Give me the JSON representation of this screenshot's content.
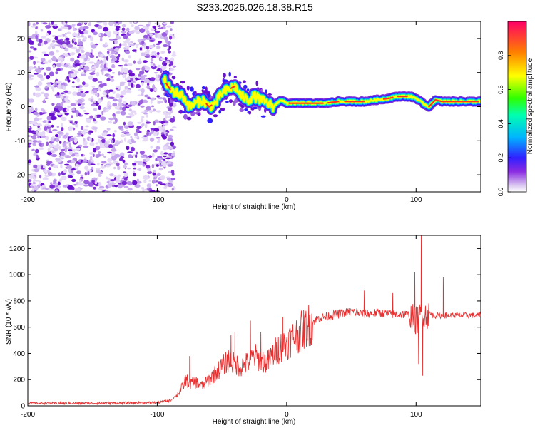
{
  "title": "S233.2026.026.18.38.R15",
  "chart_data": [
    {
      "type": "heatmap",
      "name": "spectrogram",
      "xlabel": "Height of straight line (km)",
      "ylabel": "Frequency (Hz)",
      "xlim": [
        -200,
        150
      ],
      "ylim": [
        -25,
        25
      ],
      "xticks": [
        -200,
        -100,
        0,
        100
      ],
      "yticks": [
        20,
        10,
        0,
        -10,
        -20
      ],
      "noise_region_km": [
        -200,
        -90
      ],
      "ridge": {
        "x": [
          -95,
          -90,
          -85,
          -80,
          -75,
          -70,
          -65,
          -60,
          -55,
          -50,
          -45,
          -40,
          -35,
          -30,
          -25,
          -20,
          -15,
          -10,
          -5,
          0,
          10,
          20,
          30,
          40,
          50,
          60,
          70,
          80,
          85,
          90,
          95,
          100,
          105,
          110,
          115,
          120,
          130,
          140,
          150
        ],
        "y": [
          8,
          5,
          4,
          3,
          0,
          1,
          2,
          0,
          1,
          4,
          5,
          6,
          3,
          2,
          3,
          2,
          1,
          0,
          2,
          1,
          1,
          1,
          1,
          1.5,
          1.5,
          1.5,
          2,
          2.5,
          3,
          3,
          3,
          2.5,
          1,
          0,
          2,
          1.5,
          1.5,
          1.5,
          1.5
        ]
      },
      "colorbar": {
        "label": "Normalized spectral amplitude",
        "range": [
          0.0,
          1.0
        ],
        "ticks": [
          "0.0",
          "0.2",
          "0.4",
          "0.6",
          "0.8"
        ]
      }
    },
    {
      "type": "line",
      "name": "snr",
      "xlabel": "Height of straight line (km)",
      "ylabel": "SNR (10 * v/v)",
      "xlim": [
        -200,
        150
      ],
      "ylim": [
        0,
        1300
      ],
      "xticks": [
        -200,
        -100,
        0,
        100
      ],
      "yticks": [
        0,
        200,
        400,
        600,
        800,
        1000,
        1200
      ],
      "color": "#e83030",
      "envelope": {
        "x": [
          -200,
          -150,
          -100,
          -90,
          -85,
          -80,
          -78,
          -75,
          -70,
          -65,
          -60,
          -55,
          -50,
          -45,
          -40,
          -35,
          -30,
          -25,
          -20,
          -15,
          -10,
          -5,
          0,
          5,
          10,
          15,
          20,
          25,
          30,
          40,
          50,
          60,
          70,
          80,
          90,
          95,
          100,
          105,
          110,
          120,
          130,
          140,
          150
        ],
        "y": [
          20,
          20,
          25,
          40,
          80,
          150,
          200,
          170,
          180,
          150,
          200,
          250,
          300,
          350,
          320,
          300,
          330,
          380,
          350,
          330,
          400,
          450,
          480,
          520,
          560,
          600,
          640,
          670,
          680,
          700,
          720,
          700,
          710,
          700,
          700,
          690,
          650,
          700,
          690,
          690,
          690,
          690,
          690
        ]
      },
      "spikes": [
        {
          "x": -75,
          "y": 380
        },
        {
          "x": -43,
          "y": 540
        },
        {
          "x": -40,
          "y": 560
        },
        {
          "x": -28,
          "y": 650
        },
        {
          "x": -20,
          "y": 560
        },
        {
          "x": -3,
          "y": 680
        },
        {
          "x": 60,
          "y": 880
        },
        {
          "x": 82,
          "y": 860
        },
        {
          "x": 99,
          "y": 1020
        },
        {
          "x": 104,
          "y": 1300
        },
        {
          "x": 105,
          "y": 230
        },
        {
          "x": 102,
          "y": 320
        },
        {
          "x": 121,
          "y": 980
        }
      ]
    }
  ]
}
